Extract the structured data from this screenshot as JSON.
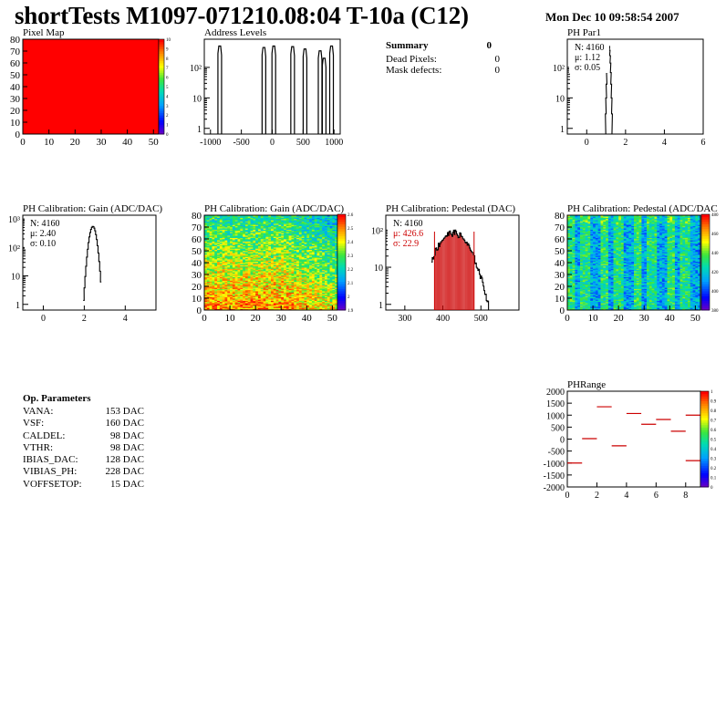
{
  "header": {
    "title": "shortTests M1097-071210.08:04 T-10a (C12)",
    "date": "Mon Dec 10 09:58:54 2007"
  },
  "summary": {
    "title": "Summary",
    "title_value": "0",
    "rows": [
      {
        "label": "Dead Pixels:",
        "value": "0"
      },
      {
        "label": "Mask defects:",
        "value": "0"
      }
    ]
  },
  "op_params": {
    "title": "Op. Parameters",
    "rows": [
      {
        "label": "VANA:",
        "value": "153 DAC"
      },
      {
        "label": "VSF:",
        "value": "160 DAC"
      },
      {
        "label": "CALDEL:",
        "value": "98 DAC"
      },
      {
        "label": "VTHR:",
        "value": "98 DAC"
      },
      {
        "label": "IBIAS_DAC:",
        "value": "128 DAC"
      },
      {
        "label": "VIBIAS_PH:",
        "value": "228 DAC"
      },
      {
        "label": "VOFFSETOP:",
        "value": "15 DAC"
      }
    ]
  },
  "colors": {
    "red": "#ff0000",
    "frame": "#000000",
    "marker": "#cc0000"
  },
  "chart_data": [
    {
      "id": "pixel-map",
      "type": "heatmap",
      "title": "Pixel Map",
      "xlim": [
        0,
        52
      ],
      "ylim": [
        0,
        80
      ],
      "xticks": [
        "0",
        "10",
        "20",
        "30",
        "40",
        "50"
      ],
      "yticks": [
        "0",
        "10",
        "20",
        "30",
        "40",
        "50",
        "60",
        "70",
        "80"
      ],
      "z_value": 10,
      "zticks": [
        "0",
        "1",
        "2",
        "3",
        "4",
        "5",
        "6",
        "7",
        "8",
        "9",
        "10"
      ]
    },
    {
      "id": "address-levels",
      "type": "bar",
      "title": "Address Levels",
      "log_y": true,
      "xlim": [
        -1100,
        1100
      ],
      "xticks": [
        "-1000",
        "-500",
        "0",
        "500",
        "1000"
      ],
      "yticks": [
        "1",
        "10",
        "10²"
      ],
      "peaks": [
        {
          "x": -850,
          "count": 500
        },
        {
          "x": -135,
          "count": 450
        },
        {
          "x": 25,
          "count": 500
        },
        {
          "x": 330,
          "count": 480
        },
        {
          "x": 530,
          "count": 400
        },
        {
          "x": 775,
          "count": 350
        },
        {
          "x": 840,
          "count": 200
        },
        {
          "x": 960,
          "count": 500
        }
      ]
    },
    {
      "id": "ph-par1",
      "type": "line",
      "title": "PH Par1",
      "log_y": true,
      "xlim": [
        -1,
        6
      ],
      "xticks": [
        "0",
        "2",
        "4",
        "6"
      ],
      "yticks": [
        "1",
        "10",
        "10²"
      ],
      "stats": {
        "N": "N: 4160",
        "mean": "μ: 1.12",
        "sigma": "σ: 0.05"
      },
      "mean": 1.12,
      "sigma": 0.05,
      "peak": 500
    },
    {
      "id": "ph-gain",
      "type": "line",
      "title": "PH Calibration: Gain (ADC/DAC)",
      "log_y": true,
      "xlim": [
        -1,
        5.5
      ],
      "xticks": [
        "0",
        "2",
        "4"
      ],
      "yticks": [
        "1",
        "10",
        "10²",
        "10³"
      ],
      "stats": {
        "N": "N: 4160",
        "mean": "μ: 2.40",
        "sigma": "σ: 0.10"
      },
      "mean": 2.4,
      "sigma": 0.1,
      "peak": 550
    },
    {
      "id": "gain-map",
      "type": "heatmap",
      "title": "PH Calibration: Gain (ADC/DAC)",
      "xlim": [
        0,
        52
      ],
      "ylim": [
        0,
        80
      ],
      "xticks": [
        "0",
        "10",
        "20",
        "30",
        "40",
        "50"
      ],
      "yticks": [
        "0",
        "10",
        "20",
        "30",
        "40",
        "50",
        "60",
        "70",
        "80"
      ],
      "zlim": [
        1.85,
        2.65
      ],
      "zticks": [
        "1.9",
        "2",
        "2.1",
        "2.2",
        "2.3",
        "2.4",
        "2.5",
        "2.6"
      ]
    },
    {
      "id": "ph-pedestal",
      "type": "line",
      "title": "PH Calibration: Pedestal (DAC)",
      "log_y": true,
      "xlim": [
        250,
        600
      ],
      "xticks": [
        "300",
        "400",
        "500"
      ],
      "yticks": [
        "1",
        "10",
        "10²"
      ],
      "stats": {
        "N": "N: 4160",
        "mean": "μ: 426.6",
        "sigma": "σ: 22.9"
      },
      "mean": 426.6,
      "sigma": 22.9,
      "peak": 85,
      "cut_lines": [
        378,
        482
      ]
    },
    {
      "id": "pedestal-map",
      "type": "heatmap",
      "title": "PH Calibration: Pedestal (ADC/DAC",
      "xlim": [
        0,
        52
      ],
      "ylim": [
        0,
        80
      ],
      "xticks": [
        "0",
        "10",
        "20",
        "30",
        "40",
        "50"
      ],
      "yticks": [
        "0",
        "10",
        "20",
        "30",
        "40",
        "50",
        "60",
        "70",
        "80"
      ],
      "zlim": [
        370,
        490
      ],
      "zticks": [
        "380",
        "400",
        "420",
        "440",
        "460",
        "480"
      ]
    },
    {
      "id": "ph-range",
      "type": "scatter",
      "title": "PHRange",
      "xlim": [
        0,
        9
      ],
      "ylim": [
        -2000,
        2000
      ],
      "xticks": [
        "0",
        "2",
        "4",
        "6",
        "8"
      ],
      "yticks": [
        "2000",
        "1500",
        "1000",
        "500",
        "0",
        "-500",
        "-1000",
        "-1500",
        "-2000"
      ],
      "points": [
        {
          "x": 0.5,
          "y": -1000
        },
        {
          "x": 1.5,
          "y": 20
        },
        {
          "x": 2.5,
          "y": 1350
        },
        {
          "x": 3.5,
          "y": -280
        },
        {
          "x": 4.5,
          "y": 1070
        },
        {
          "x": 5.5,
          "y": 620
        },
        {
          "x": 6.5,
          "y": 820
        },
        {
          "x": 7.5,
          "y": 330
        },
        {
          "x": 8.5,
          "y": 1000
        },
        {
          "x": 8.5,
          "y": -900
        }
      ],
      "zticks": [
        "0",
        "0.1",
        "0.2",
        "0.3",
        "0.4",
        "0.5",
        "0.6",
        "0.7",
        "0.8",
        "0.9",
        "1"
      ]
    }
  ]
}
